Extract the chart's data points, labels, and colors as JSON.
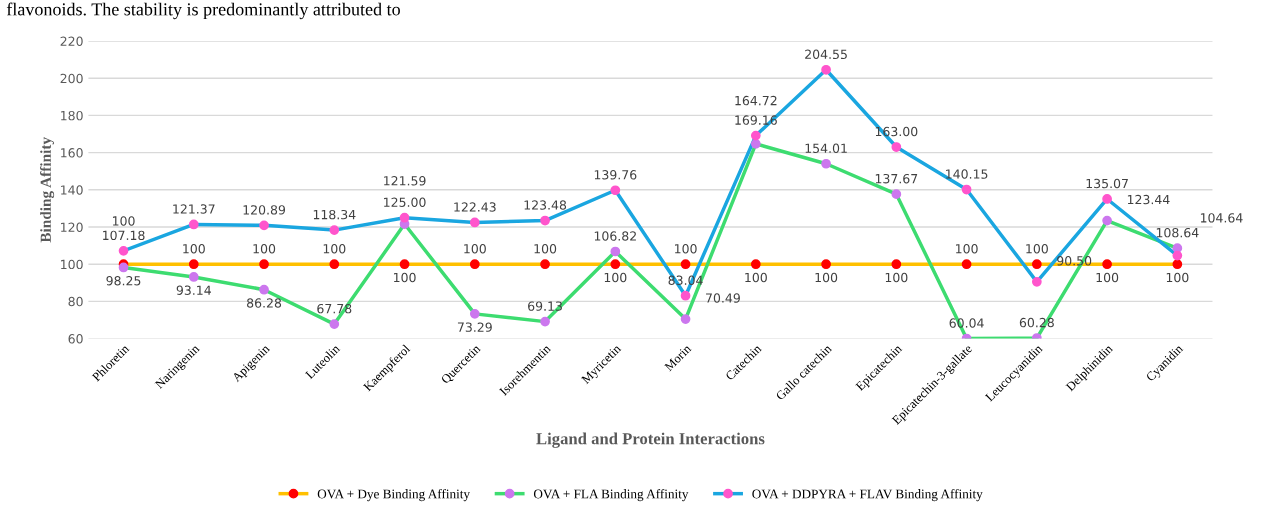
{
  "chart_data": {
    "type": "line",
    "xlabel": "Ligand and Protein Interactions",
    "ylabel": "Binding Affinity",
    "annotations": [
      "flavonoids. The stability is predominantly attributed to"
    ],
    "categories": [
      "Phloretin",
      "Naringenin",
      "Apigenin",
      "Luteolin",
      "Kaempferol",
      "Quercetin",
      "Isorehmentin",
      "Myricetin",
      "Morin",
      "Catechin",
      "Gallo catechin",
      "Epicatechin",
      "Epicatechin-3-gallate",
      "Leucocyanidin",
      "Delphinidin",
      "Cyanidin"
    ],
    "series": [
      {
        "name": "OVA + Dye Binding Affinity",
        "color": "#ffc000",
        "colors": [
          "#ff0000",
          "#ff0000",
          "#ff0000",
          "#ff0000",
          "#ff0000",
          "#ff0000",
          "#ff0000",
          "#ff0000",
          "#ff0000",
          "#ff0000",
          "#ff0000",
          "#ff0000",
          "#ff0000",
          "#ff0000",
          "#ff0000",
          "#ff0000"
        ],
        "values": [
          100,
          100,
          100,
          100,
          100,
          100,
          100,
          100,
          100,
          100,
          100,
          100,
          100,
          100,
          100,
          100
        ]
      },
      {
        "name": "OVA + FLA Binding Affinity",
        "color": "#3ddc70",
        "colors": [
          "#cc77ee",
          "#cc77ee",
          "#cc77ee",
          "#cc77ee",
          "#cc77ee",
          "#cc77ee",
          "#cc77ee",
          "#cc77ee",
          "#cc77ee",
          "#cc77ee",
          "#cc77ee",
          "#cc77ee",
          "#cc77ee",
          "#cc77ee",
          "#cc77ee",
          "#cc77ee"
        ],
        "values": [
          98.25,
          93.14,
          86.28,
          67.78,
          121.59,
          73.29,
          69.13,
          106.82,
          70.49,
          164.72,
          154.01,
          137.67,
          60.04,
          60.28,
          123.44,
          108.64
        ]
      },
      {
        "name": "OVA + DDPYRA + FLAV Binding Affinity",
        "color": "#1aa6e0",
        "colors": [
          "#ff55cc",
          "#ff55cc",
          "#ff55cc",
          "#ff55cc",
          "#ff55cc",
          "#ff55cc",
          "#ff55cc",
          "#ff55cc",
          "#ff55cc",
          "#ff55cc",
          "#ff55cc",
          "#ff55cc",
          "#ff55cc",
          "#ff55cc",
          "#ff55cc",
          "#ff55cc"
        ],
        "values": [
          107.18,
          121.37,
          120.89,
          118.34,
          125.0,
          122.43,
          123.48,
          139.76,
          83.04,
          169.16,
          204.55,
          163.0,
          140.15,
          90.5,
          135.07,
          104.64
        ],
        "value_labels": [
          "107.18",
          "121.37",
          "120.89",
          "118.34",
          "125.00",
          "122.43",
          "123.48",
          "139.76",
          "83.04",
          "169.16",
          "204.55",
          "163.00",
          "140.15",
          "90.50",
          "135.07",
          "104.64"
        ]
      }
    ],
    "data_labels": true,
    "ylim": [
      60,
      220
    ],
    "yticks": [
      60,
      80,
      100,
      120,
      140,
      160,
      180,
      200,
      220
    ],
    "grid": "y",
    "legend": "bottom",
    "marker": "circle",
    "line_style": "solid"
  }
}
